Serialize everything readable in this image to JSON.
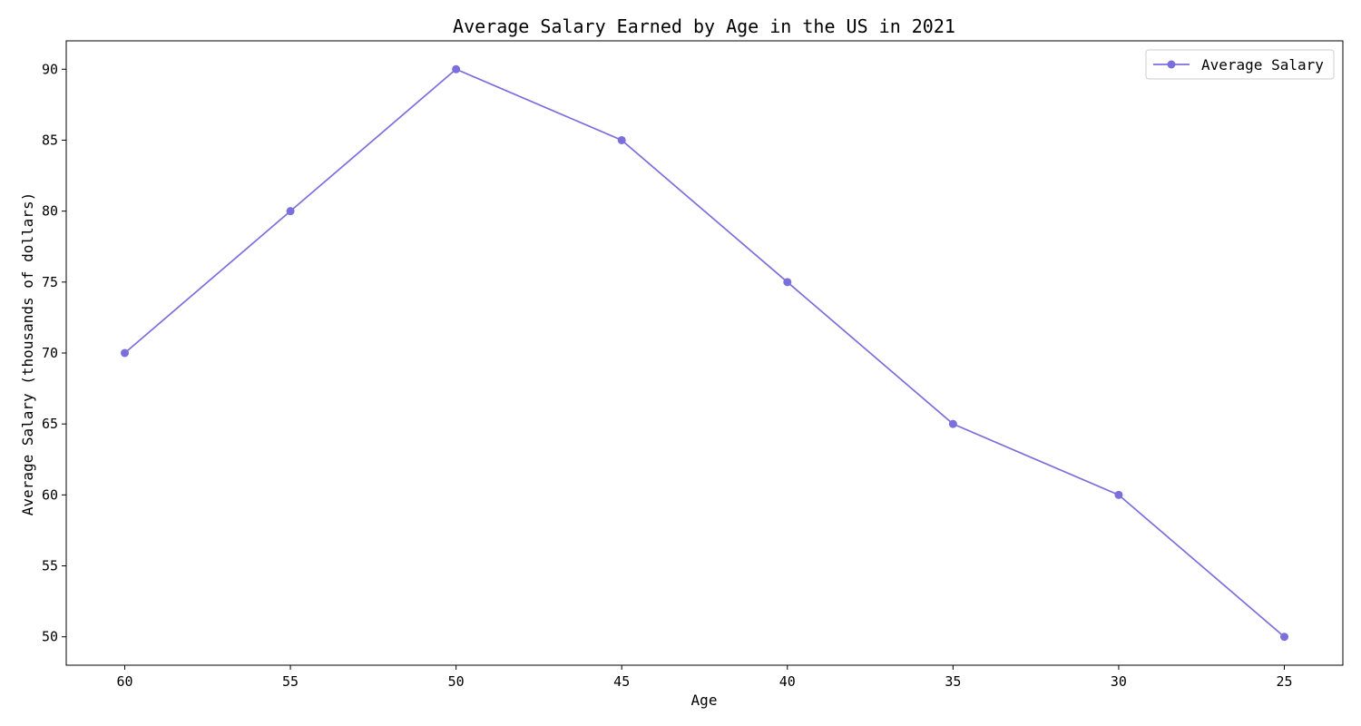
{
  "chart_data": {
    "type": "line",
    "title": "Average Salary Earned by Age in the US in 2021",
    "xlabel": "Age",
    "ylabel": "Average Salary (thousands of dollars)",
    "categories": [
      "60",
      "55",
      "50",
      "45",
      "40",
      "35",
      "30",
      "25"
    ],
    "series": [
      {
        "name": "Average Salary",
        "values": [
          70,
          80,
          90,
          85,
          75,
          65,
          60,
          50
        ],
        "color": "#7b6fdc"
      }
    ],
    "ylim": [
      48,
      92
    ],
    "yticks": [
      50,
      55,
      60,
      65,
      70,
      75,
      80,
      85,
      90
    ],
    "legend": "top-right",
    "grid": false
  }
}
